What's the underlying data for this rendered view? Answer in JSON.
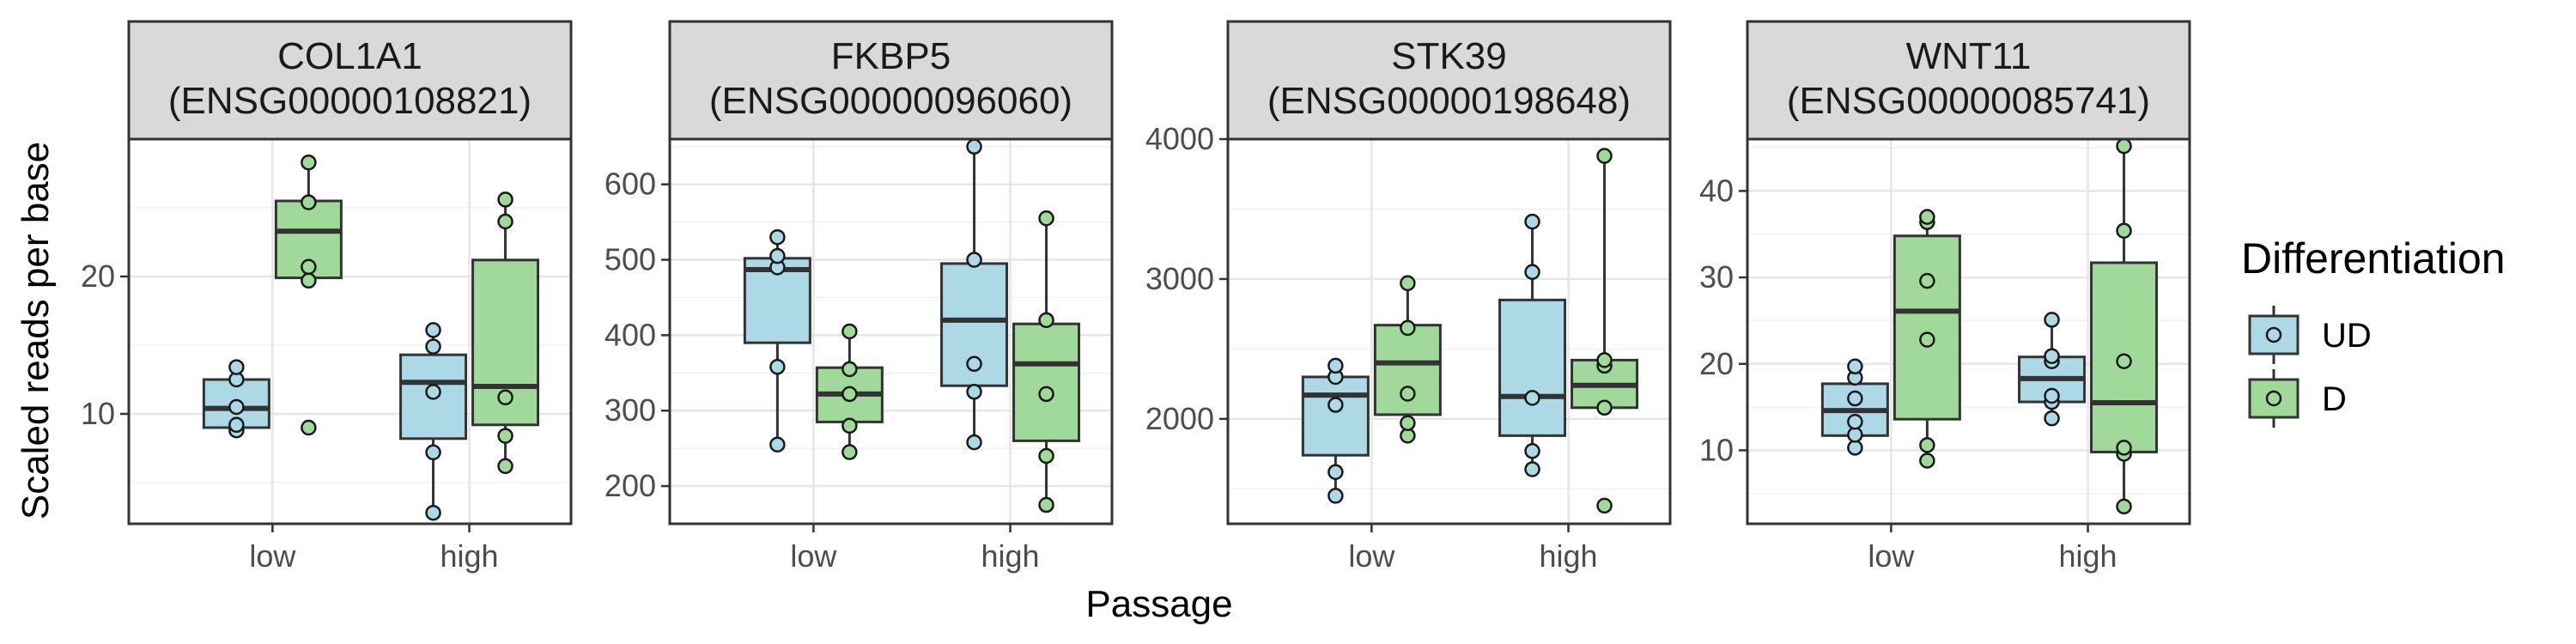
{
  "chart_data": {
    "type": "box",
    "xlabel": "Passage",
    "ylabel": "Scaled reads per base",
    "categories": [
      "low",
      "high"
    ],
    "legend": {
      "title": "Differentiation",
      "placement": "right",
      "entries": [
        {
          "name": "UD",
          "color": "#ADD8E6"
        },
        {
          "name": "D",
          "color": "#A1D99B"
        }
      ]
    },
    "grid": true,
    "facets": [
      {
        "gene": "COL1A1",
        "ensembl": "(ENSG00000108821)",
        "ylim": [
          2,
          30
        ],
        "yticks": [
          10,
          20
        ],
        "groups": [
          {
            "passage": "low",
            "differentiation": "UD",
            "box": {
              "min": 8.8,
              "q1": 9.0,
              "median": 10.4,
              "q3": 12.5,
              "max": 13.5
            },
            "points": [
              8.8,
              9.2,
              10.5,
              12.5,
              13.4
            ]
          },
          {
            "passage": "low",
            "differentiation": "D",
            "box": {
              "min": 19.6,
              "q1": 19.9,
              "median": 23.3,
              "q3": 25.5,
              "max": 28.3
            },
            "points": [
              9.0,
              19.7,
              20.7,
              25.4,
              28.3
            ]
          },
          {
            "passage": "high",
            "differentiation": "UD",
            "box": {
              "min": 2.8,
              "q1": 8.2,
              "median": 12.3,
              "q3": 14.3,
              "max": 16.0
            },
            "points": [
              2.8,
              7.2,
              11.6,
              14.9,
              16.1
            ]
          },
          {
            "passage": "high",
            "differentiation": "D",
            "box": {
              "min": 6.2,
              "q1": 9.2,
              "median": 12.0,
              "q3": 21.2,
              "max": 25.6
            },
            "points": [
              6.2,
              8.4,
              11.2,
              24.0,
              25.6
            ]
          }
        ]
      },
      {
        "gene": "FKBP5",
        "ensembl": "(ENSG00000096060)",
        "ylim": [
          150,
          660
        ],
        "yticks": [
          200,
          300,
          400,
          500,
          600
        ],
        "groups": [
          {
            "passage": "low",
            "differentiation": "UD",
            "box": {
              "min": 255,
              "q1": 390,
              "median": 487,
              "q3": 502,
              "max": 530
            },
            "points": [
              255,
              358,
              490,
              505,
              530
            ]
          },
          {
            "passage": "low",
            "differentiation": "D",
            "box": {
              "min": 245,
              "q1": 285,
              "median": 322,
              "q3": 357,
              "max": 405
            },
            "points": [
              245,
              280,
              322,
              355,
              405
            ]
          },
          {
            "passage": "high",
            "differentiation": "UD",
            "box": {
              "min": 258,
              "q1": 333,
              "median": 420,
              "q3": 495,
              "max": 650
            },
            "points": [
              258,
              325,
              362,
              500,
              650
            ]
          },
          {
            "passage": "high",
            "differentiation": "D",
            "box": {
              "min": 175,
              "q1": 260,
              "median": 362,
              "q3": 415,
              "max": 555
            },
            "points": [
              175,
              240,
              322,
              420,
              555
            ]
          }
        ]
      },
      {
        "gene": "STK39",
        "ensembl": "(ENSG00000198648)",
        "ylim": [
          1250,
          4000
        ],
        "yticks": [
          2000,
          3000,
          4000
        ],
        "groups": [
          {
            "passage": "low",
            "differentiation": "UD",
            "box": {
              "min": 1450,
              "q1": 1740,
              "median": 2170,
              "q3": 2300,
              "max": 2380
            },
            "points": [
              1450,
              1620,
              2100,
              2300,
              2380
            ]
          },
          {
            "passage": "low",
            "differentiation": "D",
            "box": {
              "min": 1880,
              "q1": 2030,
              "median": 2400,
              "q3": 2670,
              "max": 2970
            },
            "points": [
              1880,
              1970,
              2180,
              2650,
              2970
            ]
          },
          {
            "passage": "high",
            "differentiation": "UD",
            "box": {
              "min": 1640,
              "q1": 1880,
              "median": 2160,
              "q3": 2850,
              "max": 3410
            },
            "points": [
              1640,
              1770,
              2150,
              3050,
              3410
            ]
          },
          {
            "passage": "high",
            "differentiation": "D",
            "box": {
              "min": 2080,
              "q1": 2080,
              "median": 2240,
              "q3": 2420,
              "max": 3880
            },
            "points": [
              1380,
              2080,
              2380,
              2420,
              3880
            ]
          }
        ]
      },
      {
        "gene": "WNT11",
        "ensembl": "(ENSG00000085741)",
        "ylim": [
          1.5,
          46
        ],
        "yticks": [
          10,
          20,
          30,
          40
        ],
        "groups": [
          {
            "passage": "low",
            "differentiation": "UD",
            "box": {
              "min": 10.3,
              "q1": 11.7,
              "median": 14.6,
              "q3": 17.7,
              "max": 19.7
            },
            "points": [
              10.3,
              11.8,
              13.3,
              16.0,
              18.4,
              19.7
            ]
          },
          {
            "passage": "low",
            "differentiation": "D",
            "box": {
              "min": 8.8,
              "q1": 13.6,
              "median": 26.1,
              "q3": 34.8,
              "max": 37.0
            },
            "points": [
              8.8,
              10.6,
              22.8,
              29.6,
              36.4,
              37.0
            ]
          },
          {
            "passage": "high",
            "differentiation": "UD",
            "box": {
              "min": 13.7,
              "q1": 15.6,
              "median": 18.3,
              "q3": 20.8,
              "max": 25.1
            },
            "points": [
              13.7,
              15.6,
              16.3,
              20.3,
              20.9,
              25.1
            ]
          },
          {
            "passage": "high",
            "differentiation": "D",
            "box": {
              "min": 3.5,
              "q1": 9.8,
              "median": 15.5,
              "q3": 31.7,
              "max": 45.2
            },
            "points": [
              3.5,
              9.6,
              10.3,
              20.3,
              35.4,
              45.2
            ]
          }
        ]
      }
    ]
  }
}
